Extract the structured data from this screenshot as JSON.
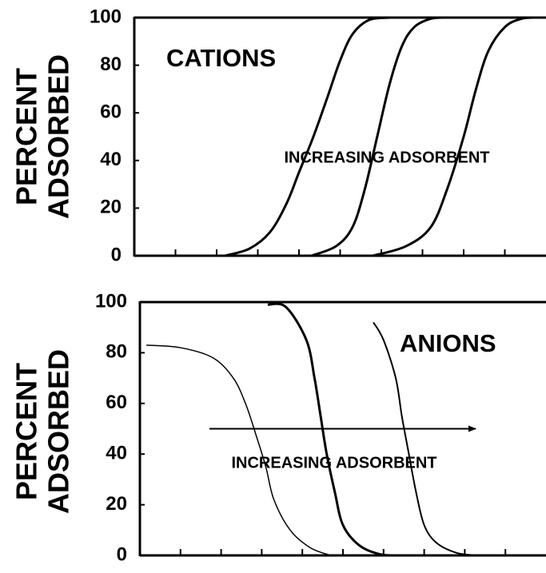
{
  "chart_data": [
    {
      "type": "line",
      "ylabel": [
        "PERCENT",
        "ADSORBED"
      ],
      "label": "CATIONS",
      "annotation": "INCREASING ADSORBENT",
      "xlim": [
        0,
        10
      ],
      "xticks": [
        1,
        2,
        3,
        4,
        5,
        6,
        7,
        8,
        9
      ],
      "ylim": [
        0,
        100
      ],
      "yticks": [
        0,
        20,
        40,
        60,
        80,
        100
      ],
      "series": [
        {
          "color": "#000000",
          "line_width": 3,
          "x": [
            2.2,
            2.8,
            3.3,
            3.7,
            4.0,
            4.35,
            4.7,
            5.0,
            5.3,
            5.7,
            6.2
          ],
          "values": [
            0,
            3,
            10,
            22,
            35,
            50,
            67,
            82,
            93,
            99,
            100
          ]
        },
        {
          "color": "#000000",
          "line_width": 3,
          "x": [
            4.3,
            4.9,
            5.3,
            5.6,
            5.9,
            6.2,
            6.5,
            6.8,
            7.2,
            7.6
          ],
          "values": [
            0,
            4,
            12,
            28,
            50,
            72,
            88,
            96,
            99.5,
            100
          ]
        },
        {
          "color": "#000000",
          "line_width": 3,
          "x": [
            5.8,
            6.6,
            7.2,
            7.6,
            8.0,
            8.3,
            8.6,
            9.0,
            9.4,
            9.8
          ],
          "values": [
            0,
            4,
            12,
            28,
            50,
            70,
            86,
            96,
            99.5,
            100
          ]
        }
      ]
    },
    {
      "type": "line",
      "ylabel": [
        "PERCENT",
        "ADSORBED"
      ],
      "label": "ANIONS",
      "annotation": "INCREASING ADSORBENT",
      "xlim": [
        0,
        10
      ],
      "xticks": [
        1,
        2,
        3,
        4,
        5,
        6,
        7,
        8,
        9
      ],
      "ylim": [
        0,
        100
      ],
      "yticks": [
        0,
        20,
        40,
        60,
        80,
        100
      ],
      "series": [
        {
          "color": "#000000",
          "line_width": 1.5,
          "x": [
            0.16,
            1.0,
            1.8,
            2.3,
            2.6,
            2.85,
            3.1,
            3.3,
            3.7,
            4.2,
            4.7
          ],
          "values": [
            83,
            82,
            78,
            70,
            60,
            48,
            35,
            22,
            10,
            3,
            0
          ]
        },
        {
          "color": "#000000",
          "line_width": 3,
          "x": [
            3.15,
            3.6,
            4.1,
            4.3,
            4.45,
            4.6,
            4.8,
            5.0,
            5.4,
            5.9,
            6.3
          ],
          "values": [
            99,
            98,
            85,
            70,
            55,
            40,
            25,
            12,
            4,
            0.5,
            0
          ]
        },
        {
          "color": "#000000",
          "line_width": 2,
          "x": [
            5.75,
            6.0,
            6.3,
            6.45,
            6.6,
            6.8,
            7.0,
            7.3,
            7.8,
            8.3
          ],
          "values": [
            92,
            85,
            70,
            55,
            42,
            25,
            12,
            5,
            1,
            0
          ]
        }
      ]
    }
  ]
}
